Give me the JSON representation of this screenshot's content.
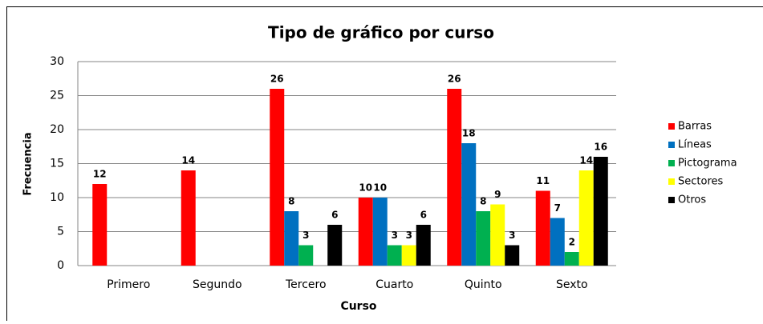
{
  "chart_data": {
    "type": "bar",
    "title": "Tipo de gráfico por curso",
    "x_label": "Curso",
    "y_label": "Frecuencia",
    "categories": [
      "Primero",
      "Segundo",
      "Tercero",
      "Cuarto",
      "Quinto",
      "Sexto"
    ],
    "series": [
      {
        "name": "Barras",
        "color": "#ff0000",
        "values": [
          12,
          14,
          26,
          10,
          26,
          11
        ]
      },
      {
        "name": "Líneas",
        "color": "#0070c0",
        "values": [
          null,
          null,
          8,
          10,
          18,
          7
        ]
      },
      {
        "name": "Pictograma",
        "color": "#00b050",
        "values": [
          null,
          null,
          3,
          3,
          8,
          2
        ]
      },
      {
        "name": "Sectores",
        "color": "#ffff00",
        "values": [
          null,
          null,
          null,
          3,
          9,
          14
        ]
      },
      {
        "name": "Otros",
        "color": "#000000",
        "values": [
          null,
          null,
          6,
          6,
          3,
          16
        ]
      }
    ],
    "ylim": [
      0,
      30
    ],
    "yticks": [
      0,
      5,
      10,
      15,
      20,
      25,
      30
    ],
    "grid": true,
    "legend": "right"
  }
}
